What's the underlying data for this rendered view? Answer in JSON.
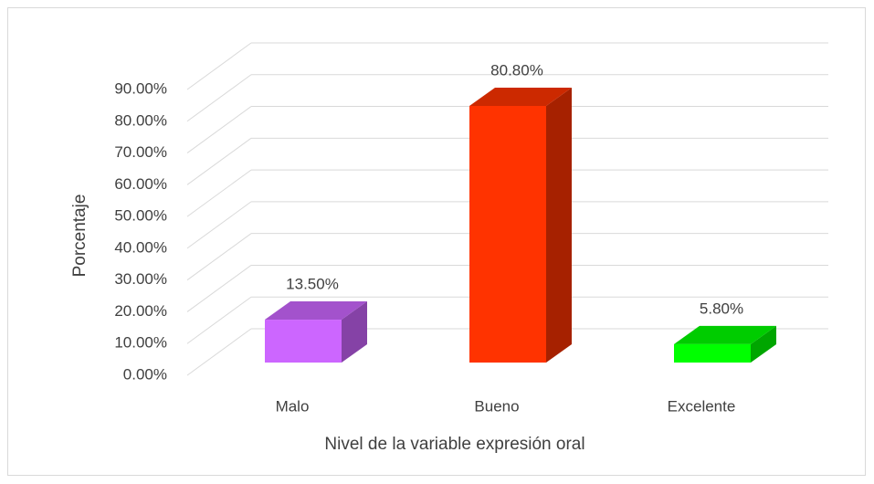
{
  "chart_data": {
    "type": "bar3d",
    "x_label": "Nivel de la variable expresión oral",
    "y_label": "Porcentaje",
    "categories": [
      "Malo",
      "Bueno",
      "Excelente"
    ],
    "values": [
      13.5,
      80.8,
      5.8
    ],
    "value_labels": [
      "13.50%",
      "80.80%",
      "5.80%"
    ],
    "colors": [
      "#cc66ff",
      "#ff3300",
      "#00ff00"
    ],
    "ylim": [
      0,
      90
    ],
    "yticks": [
      {
        "value": 0,
        "label": "0.00%"
      },
      {
        "value": 10,
        "label": "10.00%"
      },
      {
        "value": 20,
        "label": "20.00%"
      },
      {
        "value": 30,
        "label": "30.00%"
      },
      {
        "value": 40,
        "label": "40.00%"
      },
      {
        "value": 50,
        "label": "50.00%"
      },
      {
        "value": 60,
        "label": "60.00%"
      },
      {
        "value": 70,
        "label": "70.00%"
      },
      {
        "value": 80,
        "label": "80.00%"
      },
      {
        "value": 90,
        "label": "90.00%"
      }
    ],
    "grid": true
  }
}
